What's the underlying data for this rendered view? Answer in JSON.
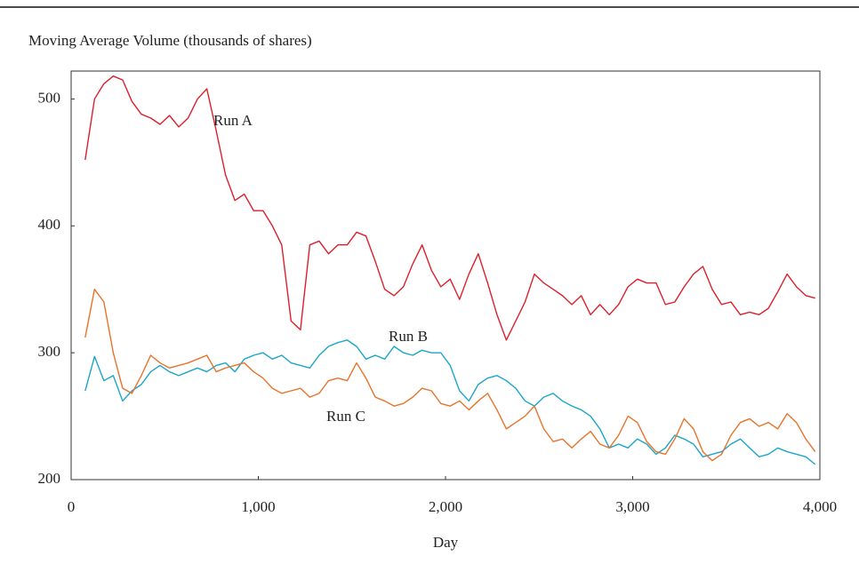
{
  "chart_data": {
    "type": "line",
    "title": "Moving Average Volume (thousands of shares)",
    "x_label": "Day",
    "x": [
      75,
      125,
      175,
      225,
      275,
      325,
      375,
      425,
      475,
      525,
      575,
      625,
      675,
      725,
      775,
      825,
      875,
      925,
      975,
      1025,
      1075,
      1125,
      1175,
      1225,
      1275,
      1325,
      1375,
      1425,
      1475,
      1525,
      1575,
      1625,
      1675,
      1725,
      1775,
      1825,
      1875,
      1925,
      1975,
      2025,
      2075,
      2125,
      2175,
      2225,
      2275,
      2325,
      2375,
      2425,
      2475,
      2525,
      2575,
      2625,
      2675,
      2725,
      2775,
      2825,
      2875,
      2925,
      2975,
      3025,
      3075,
      3125,
      3175,
      3225,
      3275,
      3325,
      3375,
      3425,
      3475,
      3525,
      3575,
      3625,
      3675,
      3725,
      3775,
      3825,
      3875,
      3925,
      3975
    ],
    "series": [
      {
        "name": "Run A",
        "color": "#dc1f2b",
        "values": [
          452,
          500,
          512,
          518,
          515,
          498,
          488,
          485,
          480,
          487,
          478,
          485,
          500,
          508,
          475,
          440,
          420,
          425,
          412,
          412,
          400,
          385,
          325,
          318,
          385,
          388,
          378,
          385,
          385,
          395,
          392,
          372,
          350,
          345,
          352,
          370,
          385,
          365,
          352,
          358,
          342,
          362,
          378,
          355,
          330,
          310,
          325,
          340,
          362,
          355,
          350,
          345,
          338,
          345,
          330,
          338,
          330,
          338,
          352,
          358,
          355,
          355,
          338,
          340,
          352,
          362,
          368,
          350,
          338,
          340,
          330,
          332,
          330,
          335,
          348,
          362,
          352,
          345,
          343
        ]
      },
      {
        "name": "Run B",
        "color": "#1aa6c8",
        "values": [
          270,
          297,
          278,
          282,
          262,
          270,
          275,
          285,
          290,
          285,
          282,
          285,
          288,
          285,
          290,
          292,
          285,
          295,
          298,
          300,
          295,
          298,
          292,
          290,
          288,
          298,
          305,
          308,
          310,
          305,
          295,
          298,
          295,
          305,
          300,
          298,
          302,
          300,
          300,
          290,
          270,
          262,
          275,
          280,
          282,
          278,
          272,
          262,
          258,
          265,
          268,
          262,
          258,
          255,
          250,
          240,
          225,
          228,
          225,
          232,
          228,
          220,
          225,
          235,
          232,
          228,
          218,
          220,
          222,
          228,
          232,
          225,
          218,
          220,
          225,
          222,
          220,
          218,
          212
        ]
      },
      {
        "name": "Run C",
        "color": "#e8732a",
        "values": [
          312,
          350,
          340,
          300,
          272,
          268,
          282,
          298,
          292,
          288,
          290,
          292,
          295,
          298,
          285,
          288,
          290,
          292,
          285,
          280,
          272,
          268,
          270,
          272,
          265,
          268,
          278,
          280,
          278,
          292,
          280,
          265,
          262,
          258,
          260,
          265,
          272,
          270,
          260,
          258,
          262,
          255,
          262,
          268,
          255,
          240,
          245,
          250,
          258,
          240,
          230,
          232,
          225,
          232,
          238,
          228,
          225,
          235,
          250,
          245,
          230,
          222,
          220,
          232,
          248,
          240,
          222,
          215,
          220,
          235,
          245,
          248,
          242,
          245,
          240,
          252,
          245,
          232,
          222
        ]
      }
    ],
    "xlim": [
      0,
      4000
    ],
    "xticks": [
      0,
      {
        "value": 1000,
        "label": "1,000"
      },
      {
        "value": 2000,
        "label": "2,000"
      },
      {
        "value": 3000,
        "label": "3,000"
      },
      {
        "value": 4000,
        "label": "4,000"
      }
    ],
    "ylim": [
      200,
      522
    ],
    "yticks": [
      200,
      300,
      400,
      500
    ],
    "grid": false
  }
}
